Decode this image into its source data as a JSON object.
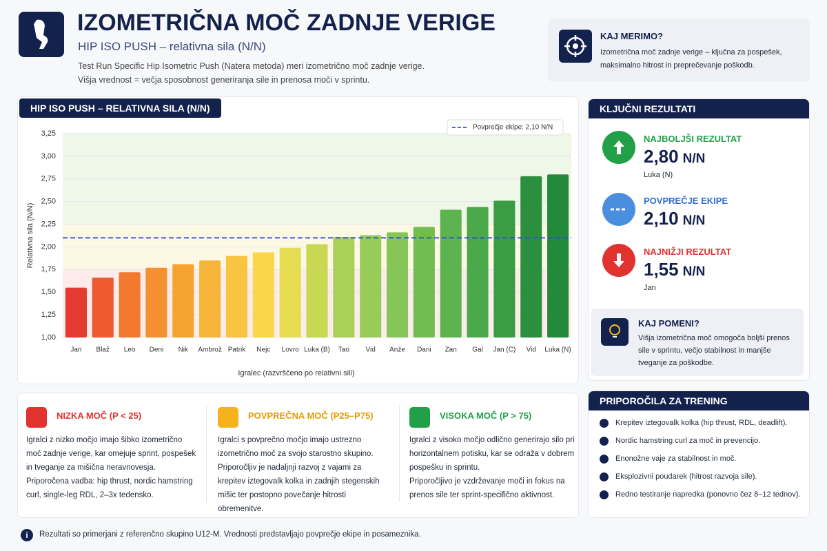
{
  "header": {
    "title": "IZOMETRIČNA MOČ ZADNJE VERIGE",
    "subtitle": "HIP ISO PUSH – relativna sila (N/N)",
    "description": [
      "Test Run Specific Hip Isometric Push (Natera metoda) meri izometrično moč zadnje verige.",
      "Višja vrednost = večja sposobnost generiranja sile in prenosa moči v sprintu."
    ]
  },
  "info_box": {
    "title": "KAJ MERIMO?",
    "text": "Izometrična moč zadnje verige – ključna za pospešek, maksimalno hitrost in preprečevanje poškodb."
  },
  "chart_data": {
    "type": "bar",
    "title": "HIP ISO PUSH – RELATIVNA SILA (N/N)",
    "x_label": "Igralec (razvrščeno po relativni sili)",
    "y_label": "Relativna sila (N/N)",
    "categories": [
      "Jan",
      "Blaž",
      "Leo",
      "Deni",
      "Nik",
      "Ambrož",
      "Patrik",
      "Nejc",
      "Lovro",
      "Luka (B)",
      "Tao",
      "Vid",
      "Anže",
      "Dani",
      "Zan",
      "Gal",
      "Jan (C)",
      "Vid",
      "Luka (N)"
    ],
    "values": [
      1.55,
      1.66,
      1.72,
      1.77,
      1.81,
      1.85,
      1.9,
      1.94,
      1.99,
      2.03,
      2.11,
      2.13,
      2.16,
      2.22,
      2.41,
      2.44,
      2.51,
      2.78,
      2.8
    ],
    "colors": [
      "#e53a2f",
      "#ee5a2e",
      "#f17a30",
      "#f4902f",
      "#f6a332",
      "#f7b43a",
      "#f9c43f",
      "#fbd64a",
      "#e6dc52",
      "#c9d853",
      "#a9d058",
      "#98cc58",
      "#86c557",
      "#72bd53",
      "#5db34f",
      "#4ba84b",
      "#3a9c45",
      "#2b8f3f",
      "#238a3b"
    ],
    "ylim": [
      1.0,
      3.25
    ],
    "yticks": [
      {
        "value": 1.0,
        "label": "1,00"
      },
      {
        "value": 1.25,
        "label": "1,25"
      },
      {
        "value": 1.5,
        "label": "1,50"
      },
      {
        "value": 1.75,
        "label": "1,75"
      },
      {
        "value": 2.0,
        "label": "2,00"
      },
      {
        "value": 2.25,
        "label": "2,25"
      },
      {
        "value": 2.5,
        "label": "2,50"
      },
      {
        "value": 2.75,
        "label": "2,75"
      },
      {
        "value": 3.0,
        "label": "3,00"
      },
      {
        "value": 3.25,
        "label": "3,25"
      }
    ],
    "zones": [
      {
        "from": 1.0,
        "to": 1.75,
        "color": "#fdecea"
      },
      {
        "from": 1.75,
        "to": 2.25,
        "color": "#fdf8e4"
      },
      {
        "from": 2.25,
        "to": 3.25,
        "color": "#eef7e8"
      }
    ],
    "reference_line": {
      "value": 2.1,
      "label": "Povprečje ekipe: 2,10 N/N",
      "color": "#2f4fd8"
    },
    "grid": true
  },
  "key_results": {
    "title": "KLJUČNI REZULTATI",
    "items": [
      {
        "label": "NAJBOLJŠI REZULTAT",
        "value": "2,80",
        "unit": "N/N",
        "name": "Luka (N)"
      },
      {
        "label": "POVPREČJE EKIPE",
        "value": "2,10",
        "unit": "N/N"
      },
      {
        "label": "NAJNIŽJI REZULTAT",
        "value": "1,55",
        "unit": "N/N",
        "name": "Jan"
      }
    ]
  },
  "meaning": {
    "title": "KAJ POMENI?",
    "text": "Višja izometrična moč omogoča boljši prenos sile v sprintu, večjo stabilnost in manjše tveganje za poškodbe."
  },
  "levels": [
    {
      "title": "NIZKA MOČ (P < 25)",
      "text": "Igralci z nizko močjo imajo šibko izometrično moč zadnje verige, kar omejuje sprint, pospešek in tveganje za mišična neravnovesja.",
      "extra": "Priporočena vadba: hip thrust, nordic hamstring curl, single-leg RDL, 2–3x tedensko."
    },
    {
      "title": "POVPREČNA MOČ (P25–P75)",
      "text": "Igralci s povprečno močjo imajo ustrezno izometrično moč za svojo starostno skupino.",
      "extra": "Priporočljiv je nadaljnji razvoj z vajami za krepitev iztegovalk kolka in zadnjih stegenskih mišic ter postopno povečanje hitrosti obremenitve."
    },
    {
      "title": "VISOKA MOČ (P > 75)",
      "text": "Igralci z visoko močjo odlično generirajo silo pri horizontalnem potisku, kar se odraža v dobrem pospešku in sprintu.",
      "extra": "Priporočljivo je vzdrževanje moči in fokus na prenos sile ter sprint-specifično aktivnost."
    }
  ],
  "recommendations": {
    "title": "PRIPOROČILA ZA TRENING",
    "items": [
      "Krepitev iztegovalk kolka (hip thrust, RDL, deadlift).",
      "Nordic hamstring curl za moč in prevencijo.",
      "Enonožne vaje za stabilnost in moč.",
      "Eksplozivni poudarek (hitrost razvoja sile).",
      "Redno testiranje napredka (ponovno čez 8–12 tednov)."
    ]
  },
  "footer": "Rezultati so primerjani z referenčno skupino U12-M. Vrednosti predstavljajo povprečje ekipe in posameznika."
}
